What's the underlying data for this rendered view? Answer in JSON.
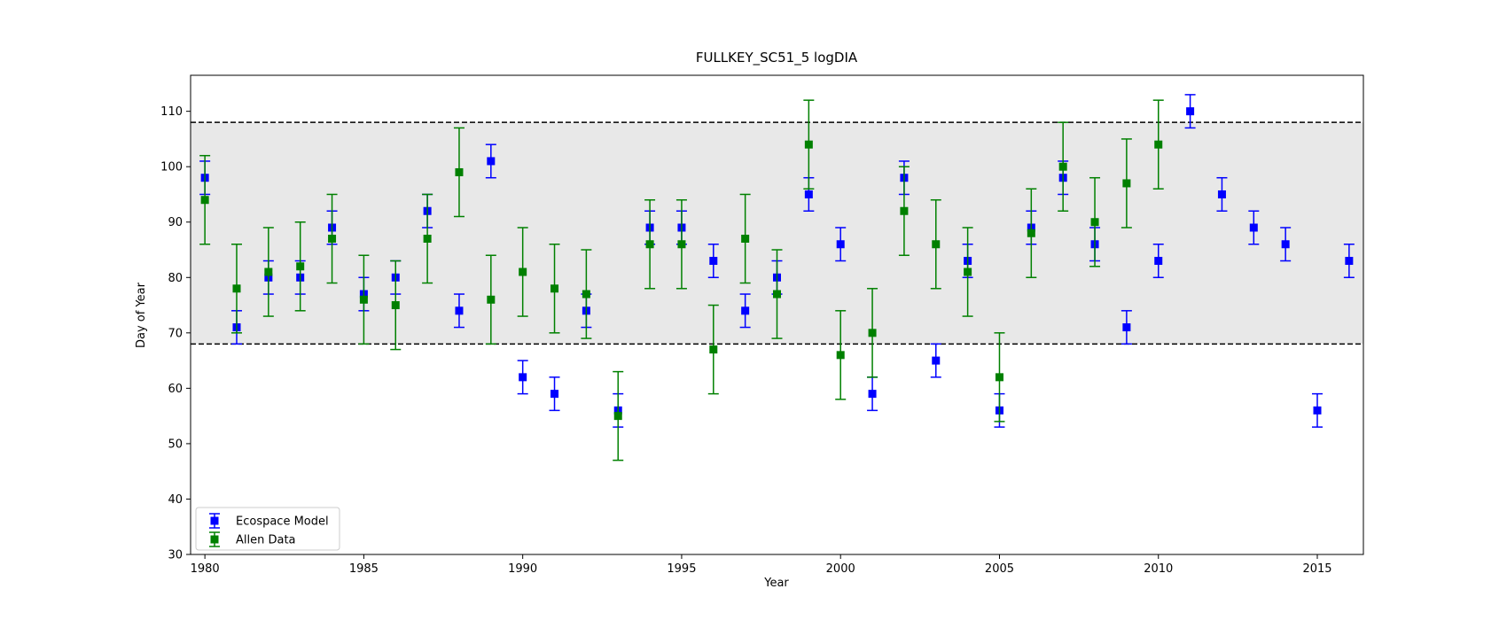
{
  "chart_data": {
    "type": "scatter",
    "title": "FULLKEY_SC51_5 logDIA",
    "xlabel": "Year",
    "ylabel": "Day of Year",
    "xlim": [
      1979.55,
      2016.45
    ],
    "ylim": [
      30,
      116.5
    ],
    "x_ticks": [
      1980,
      1985,
      1990,
      1995,
      2000,
      2005,
      2010,
      2015
    ],
    "y_ticks": [
      30,
      40,
      50,
      60,
      70,
      80,
      90,
      100,
      110
    ],
    "band": {
      "y_low": 68,
      "y_high": 108,
      "color": "#e8e8e8",
      "line_style": "dashed"
    },
    "grid": false,
    "legend_position": "lower-left",
    "series": [
      {
        "name": "Ecospace Model",
        "color": "#0000ff",
        "points": [
          {
            "x": 1980,
            "y": 98,
            "err": 3
          },
          {
            "x": 1981,
            "y": 71,
            "err": 3
          },
          {
            "x": 1982,
            "y": 80,
            "err": 3
          },
          {
            "x": 1983,
            "y": 80,
            "err": 3
          },
          {
            "x": 1984,
            "y": 89,
            "err": 3
          },
          {
            "x": 1985,
            "y": 77,
            "err": 3
          },
          {
            "x": 1986,
            "y": 80,
            "err": 3
          },
          {
            "x": 1987,
            "y": 92,
            "err": 3
          },
          {
            "x": 1988,
            "y": 74,
            "err": 3
          },
          {
            "x": 1989,
            "y": 101,
            "err": 3
          },
          {
            "x": 1990,
            "y": 62,
            "err": 3
          },
          {
            "x": 1991,
            "y": 59,
            "err": 3
          },
          {
            "x": 1992,
            "y": 74,
            "err": 3
          },
          {
            "x": 1993,
            "y": 56,
            "err": 3
          },
          {
            "x": 1994,
            "y": 89,
            "err": 3
          },
          {
            "x": 1995,
            "y": 89,
            "err": 3
          },
          {
            "x": 1996,
            "y": 83,
            "err": 3
          },
          {
            "x": 1997,
            "y": 74,
            "err": 3
          },
          {
            "x": 1998,
            "y": 80,
            "err": 3
          },
          {
            "x": 1999,
            "y": 95,
            "err": 3
          },
          {
            "x": 2000,
            "y": 86,
            "err": 3
          },
          {
            "x": 2001,
            "y": 59,
            "err": 3
          },
          {
            "x": 2002,
            "y": 98,
            "err": 3
          },
          {
            "x": 2003,
            "y": 65,
            "err": 3
          },
          {
            "x": 2004,
            "y": 83,
            "err": 3
          },
          {
            "x": 2005,
            "y": 56,
            "err": 3
          },
          {
            "x": 2006,
            "y": 89,
            "err": 3
          },
          {
            "x": 2007,
            "y": 98,
            "err": 3
          },
          {
            "x": 2008,
            "y": 86,
            "err": 3
          },
          {
            "x": 2009,
            "y": 71,
            "err": 3
          },
          {
            "x": 2010,
            "y": 83,
            "err": 3
          },
          {
            "x": 2011,
            "y": 110,
            "err": 3
          },
          {
            "x": 2012,
            "y": 95,
            "err": 3
          },
          {
            "x": 2013,
            "y": 89,
            "err": 3
          },
          {
            "x": 2014,
            "y": 86,
            "err": 3
          },
          {
            "x": 2015,
            "y": 56,
            "err": 3
          },
          {
            "x": 2016,
            "y": 83,
            "err": 3
          }
        ]
      },
      {
        "name": "Allen Data",
        "color": "#008000",
        "points": [
          {
            "x": 1980,
            "y": 94,
            "err": 8
          },
          {
            "x": 1981,
            "y": 78,
            "err": 8
          },
          {
            "x": 1982,
            "y": 81,
            "err": 8
          },
          {
            "x": 1983,
            "y": 82,
            "err": 8
          },
          {
            "x": 1984,
            "y": 87,
            "err": 8
          },
          {
            "x": 1985,
            "y": 76,
            "err": 8
          },
          {
            "x": 1986,
            "y": 75,
            "err": 8
          },
          {
            "x": 1987,
            "y": 87,
            "err": 8
          },
          {
            "x": 1988,
            "y": 99,
            "err": 8
          },
          {
            "x": 1989,
            "y": 76,
            "err": 8
          },
          {
            "x": 1990,
            "y": 81,
            "err": 8
          },
          {
            "x": 1991,
            "y": 78,
            "err": 8
          },
          {
            "x": 1992,
            "y": 77,
            "err": 8
          },
          {
            "x": 1993,
            "y": 55,
            "err": 8
          },
          {
            "x": 1994,
            "y": 86,
            "err": 8
          },
          {
            "x": 1995,
            "y": 86,
            "err": 8
          },
          {
            "x": 1996,
            "y": 67,
            "err": 8
          },
          {
            "x": 1997,
            "y": 87,
            "err": 8
          },
          {
            "x": 1998,
            "y": 77,
            "err": 8
          },
          {
            "x": 1999,
            "y": 104,
            "err": 8
          },
          {
            "x": 2000,
            "y": 66,
            "err": 8
          },
          {
            "x": 2001,
            "y": 70,
            "err": 8
          },
          {
            "x": 2002,
            "y": 92,
            "err": 8
          },
          {
            "x": 2003,
            "y": 86,
            "err": 8
          },
          {
            "x": 2004,
            "y": 81,
            "err": 8
          },
          {
            "x": 2005,
            "y": 62,
            "err": 8
          },
          {
            "x": 2006,
            "y": 88,
            "err": 8
          },
          {
            "x": 2007,
            "y": 100,
            "err": 8
          },
          {
            "x": 2008,
            "y": 90,
            "err": 8
          },
          {
            "x": 2009,
            "y": 97,
            "err": 8
          },
          {
            "x": 2010,
            "y": 104,
            "err": 8
          }
        ]
      }
    ]
  }
}
